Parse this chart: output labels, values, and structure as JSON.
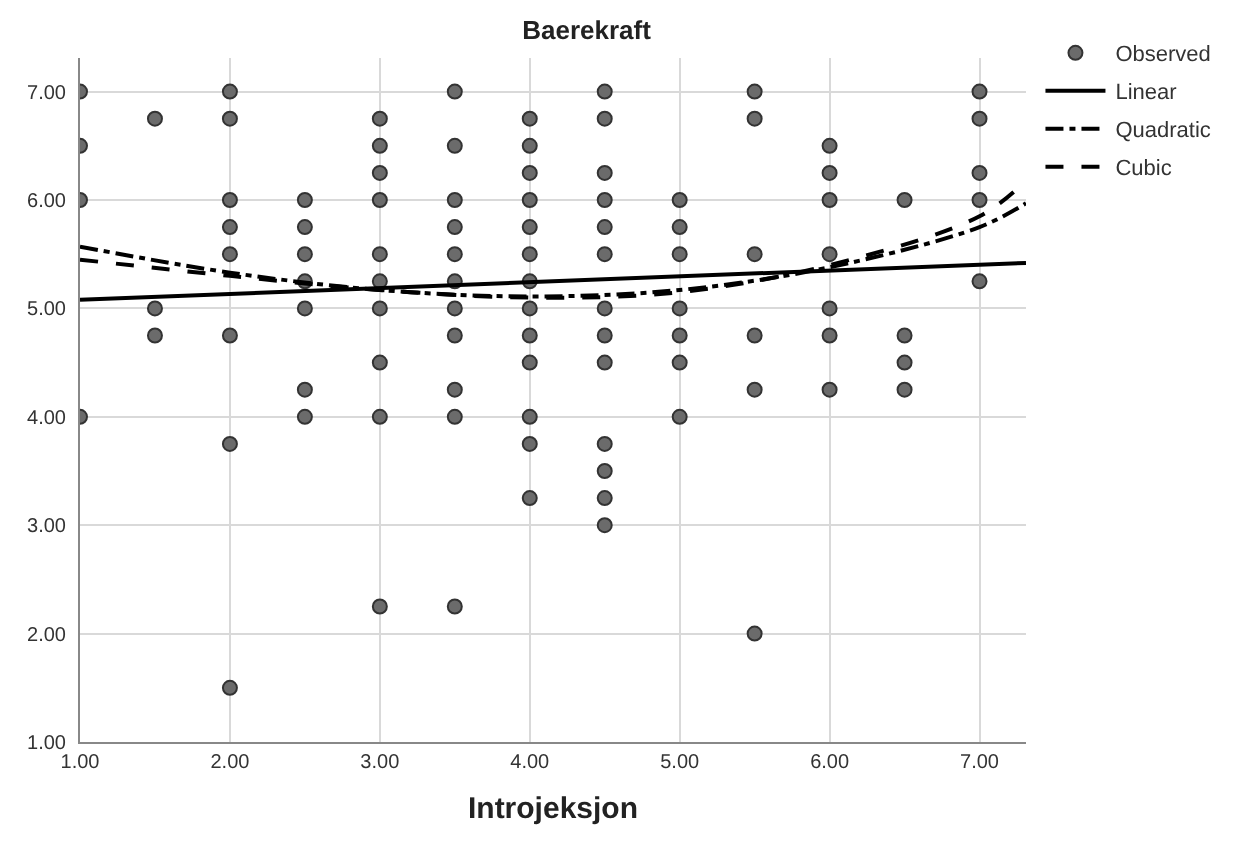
{
  "chart_data": {
    "type": "scatter",
    "title": "Baerekraft",
    "xlabel": "Introjeksjon",
    "xlim": [
      1,
      7.31
    ],
    "ylim": [
      1,
      7.31
    ],
    "xticks": [
      {
        "value": 1,
        "label": "1.00"
      },
      {
        "value": 2,
        "label": "2.00"
      },
      {
        "value": 3,
        "label": "3.00"
      },
      {
        "value": 4,
        "label": "4.00"
      },
      {
        "value": 5,
        "label": "5.00"
      },
      {
        "value": 6,
        "label": "6.00"
      },
      {
        "value": 7,
        "label": "7.00"
      }
    ],
    "yticks": [
      {
        "value": 1,
        "label": "1.00"
      },
      {
        "value": 2,
        "label": "2.00"
      },
      {
        "value": 3,
        "label": "3.00"
      },
      {
        "value": 4,
        "label": "4.00"
      },
      {
        "value": 5,
        "label": "5.00"
      },
      {
        "value": 6,
        "label": "6.00"
      },
      {
        "value": 7,
        "label": "7.00"
      }
    ],
    "grid": true,
    "legend": "top right",
    "marker": "circle",
    "series": [
      {
        "name": "Observed",
        "color": "#6b6b6b",
        "x": [
          1,
          1,
          1,
          1,
          1.5,
          1.5,
          1.5,
          2,
          2,
          2,
          2,
          2,
          2,
          2,
          2,
          2.5,
          2.5,
          2.5,
          2.5,
          2.5,
          2.5,
          2.5,
          3,
          3,
          3,
          3,
          3,
          3,
          3,
          3,
          3,
          3,
          3.5,
          3.5,
          3.5,
          3.5,
          3.5,
          3.5,
          3.5,
          3.5,
          3.5,
          3.5,
          3.5,
          4,
          4,
          4,
          4,
          4,
          4,
          4,
          4,
          4,
          4,
          4,
          4,
          4,
          4.5,
          4.5,
          4.5,
          4.5,
          4.5,
          4.5,
          4.5,
          4.5,
          4.5,
          4.5,
          4.5,
          4.5,
          4.5,
          5,
          5,
          5,
          5,
          5,
          5,
          5,
          5.5,
          5.5,
          5.5,
          5.5,
          5.5,
          5.5,
          6,
          6,
          6,
          6,
          6,
          6,
          6,
          6.5,
          6.5,
          6.5,
          6.5,
          7,
          7,
          7,
          7,
          7
        ],
        "values": [
          7,
          6.5,
          6,
          4,
          6.75,
          5,
          4.75,
          7,
          6.75,
          6,
          5.75,
          5.5,
          4.75,
          3.75,
          1.5,
          6,
          5.75,
          5.5,
          5.25,
          5,
          4.25,
          4,
          6.75,
          6.5,
          6.25,
          6,
          5.5,
          5.25,
          5,
          4.5,
          4,
          2.25,
          7,
          6.5,
          6,
          5.75,
          5.5,
          5.25,
          5,
          4.75,
          4.25,
          4,
          2.25,
          6.75,
          6.5,
          6.25,
          6,
          5.75,
          5.5,
          5.25,
          5,
          4.75,
          4.5,
          4,
          3.75,
          3.25,
          7,
          6.75,
          6.25,
          6,
          5.75,
          5.5,
          5,
          4.75,
          4.5,
          3.75,
          3.5,
          3.25,
          3,
          6,
          5.75,
          5.5,
          5,
          4.75,
          4.5,
          4,
          7,
          6.75,
          5.5,
          4.75,
          4.25,
          2,
          6.5,
          6.25,
          6,
          5.5,
          5,
          4.75,
          4.25,
          6,
          4.75,
          4.5,
          4.25,
          7,
          6.75,
          6.25,
          6,
          5.25
        ]
      },
      {
        "name": "Linear",
        "type": "line",
        "color": "#000000",
        "marker": "none",
        "line_style": "solid",
        "x": [
          1,
          7.31
        ],
        "values": [
          5.08,
          5.42
        ]
      },
      {
        "name": "Quadratic",
        "type": "line",
        "color": "#000000",
        "marker": "none",
        "line_style": "dashdot",
        "x": [
          1,
          2,
          3,
          4,
          5,
          6,
          7,
          7.31
        ],
        "values": [
          5.57,
          5.33,
          5.17,
          5.11,
          5.17,
          5.38,
          5.75,
          5.97
        ]
      },
      {
        "name": "Cubic",
        "type": "line",
        "color": "#000000",
        "marker": "none",
        "line_style": "dashed",
        "x": [
          1,
          2,
          3,
          4,
          5,
          6,
          7,
          7.31
        ],
        "values": [
          5.45,
          5.3,
          5.17,
          5.1,
          5.15,
          5.4,
          5.85,
          6.18
        ]
      }
    ]
  }
}
